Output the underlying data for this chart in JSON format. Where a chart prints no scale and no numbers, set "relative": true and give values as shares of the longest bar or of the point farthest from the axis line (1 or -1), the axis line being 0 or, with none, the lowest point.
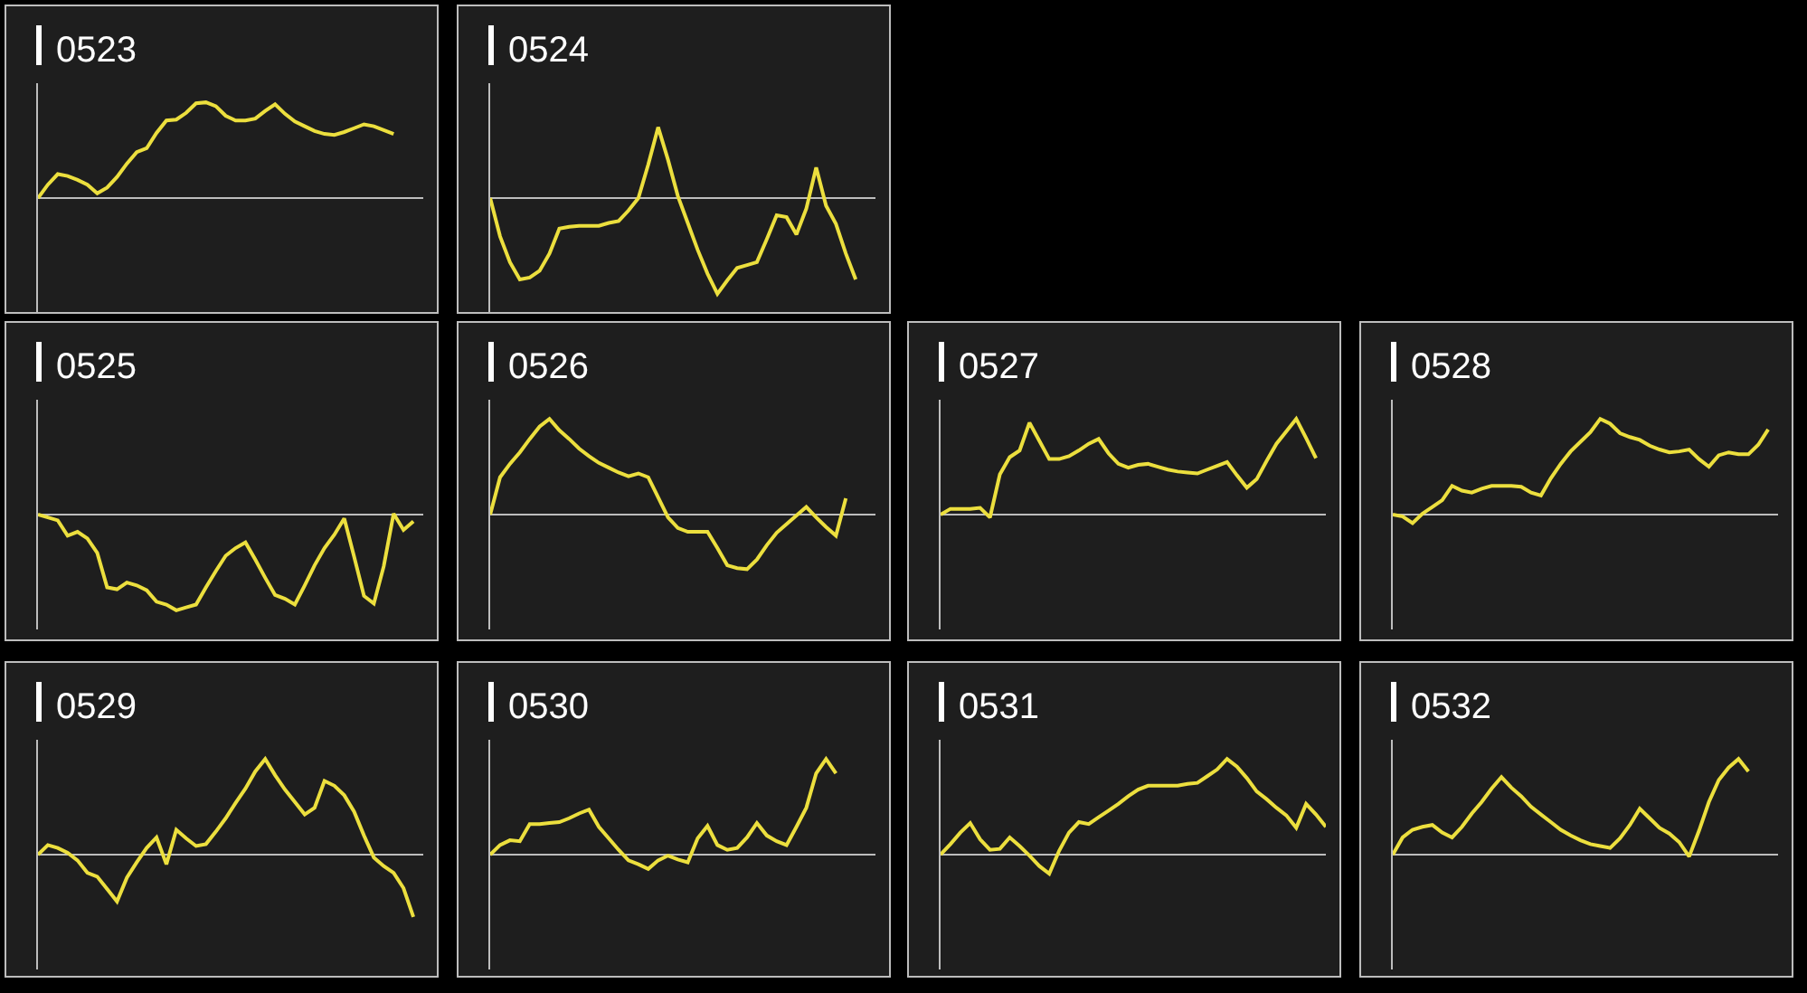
{
  "chart_data": [
    {
      "type": "line",
      "title": "0523",
      "relative": true,
      "color": "#ecdf3e",
      "categories": [
        null,
        null,
        null,
        null,
        null,
        null,
        null,
        null,
        null,
        null,
        null,
        null,
        null,
        null,
        null,
        null,
        null,
        null,
        null,
        null,
        null,
        null,
        null,
        null,
        null,
        null,
        null,
        null,
        null,
        null,
        null,
        null,
        null,
        null,
        null,
        null,
        null,
        null,
        null,
        null
      ],
      "values": [
        0,
        0.14,
        0.25,
        0.23,
        0.19,
        0.14,
        0.05,
        0.11,
        0.22,
        0.36,
        0.48,
        0.52,
        0.68,
        0.81,
        0.82,
        0.89,
        0.99,
        1,
        0.96,
        0.86,
        0.81,
        0.81,
        0.83,
        0.91,
        0.98,
        0.88,
        0.8,
        0.75,
        0.7,
        0.67,
        0.66,
        0.69,
        0.73,
        0.77,
        0.75,
        0.71,
        0.67,
        null,
        null,
        null
      ]
    },
    {
      "type": "line",
      "title": "0524",
      "relative": true,
      "color": "#ecdf3e",
      "categories": [
        null,
        null,
        null,
        null,
        null,
        null,
        null,
        null,
        null,
        null,
        null,
        null,
        null,
        null,
        null,
        null,
        null,
        null,
        null,
        null,
        null,
        null,
        null,
        null,
        null,
        null,
        null,
        null,
        null,
        null,
        null,
        null,
        null,
        null,
        null,
        null,
        null,
        null,
        null,
        null
      ],
      "values": [
        0,
        -0.4,
        -0.67,
        -0.85,
        -0.83,
        -0.76,
        -0.58,
        -0.32,
        -0.3,
        -0.29,
        -0.29,
        -0.29,
        -0.26,
        -0.24,
        -0.13,
        0,
        0.35,
        0.74,
        0.4,
        0.02,
        -0.26,
        -0.54,
        -0.79,
        -1,
        -0.86,
        -0.73,
        -0.7,
        -0.67,
        -0.43,
        -0.18,
        -0.2,
        -0.38,
        -0.11,
        0.32,
        -0.08,
        -0.27,
        -0.58,
        -0.85,
        null,
        null
      ]
    },
    {
      "type": "line",
      "title": "0525",
      "relative": true,
      "color": "#ecdf3e",
      "categories": [
        null,
        null,
        null,
        null,
        null,
        null,
        null,
        null,
        null,
        null,
        null,
        null,
        null,
        null,
        null,
        null,
        null,
        null,
        null,
        null,
        null,
        null,
        null,
        null,
        null,
        null,
        null,
        null,
        null,
        null,
        null,
        null,
        null,
        null,
        null,
        null,
        null,
        null,
        null,
        null
      ],
      "values": [
        0,
        -0.03,
        -0.06,
        -0.22,
        -0.18,
        -0.25,
        -0.4,
        -0.76,
        -0.78,
        -0.71,
        -0.74,
        -0.79,
        -0.91,
        -0.94,
        -1,
        -0.97,
        -0.94,
        -0.76,
        -0.59,
        -0.43,
        -0.35,
        -0.29,
        -0.47,
        -0.66,
        -0.84,
        -0.88,
        -0.94,
        -0.74,
        -0.53,
        -0.35,
        -0.21,
        -0.04,
        -0.44,
        -0.85,
        -0.93,
        -0.54,
        0.01,
        -0.16,
        -0.07,
        null
      ]
    },
    {
      "type": "line",
      "title": "0526",
      "relative": true,
      "color": "#ecdf3e",
      "categories": [
        null,
        null,
        null,
        null,
        null,
        null,
        null,
        null,
        null,
        null,
        null,
        null,
        null,
        null,
        null,
        null,
        null,
        null,
        null,
        null,
        null,
        null,
        null,
        null,
        null,
        null,
        null,
        null,
        null,
        null,
        null,
        null,
        null,
        null,
        null,
        null,
        null,
        null,
        null,
        null
      ],
      "values": [
        0,
        0.39,
        0.53,
        0.65,
        0.79,
        0.92,
        1,
        0.88,
        0.79,
        0.69,
        0.61,
        0.54,
        0.49,
        0.44,
        0.4,
        0.43,
        0.39,
        0.18,
        -0.03,
        -0.14,
        -0.18,
        -0.18,
        -0.18,
        -0.35,
        -0.53,
        -0.56,
        -0.57,
        -0.47,
        -0.32,
        -0.19,
        -0.1,
        -0.01,
        0.08,
        -0.03,
        -0.13,
        -0.22,
        0.17,
        null,
        null,
        null
      ]
    },
    {
      "type": "line",
      "title": "0527",
      "relative": true,
      "color": "#ecdf3e",
      "categories": [
        null,
        null,
        null,
        null,
        null,
        null,
        null,
        null,
        null,
        null,
        null,
        null,
        null,
        null,
        null,
        null,
        null,
        null,
        null,
        null,
        null,
        null,
        null,
        null,
        null,
        null,
        null,
        null,
        null,
        null,
        null,
        null,
        null,
        null,
        null,
        null,
        null,
        null,
        null,
        null
      ],
      "values": [
        0,
        0.06,
        0.06,
        0.06,
        0.07,
        -0.03,
        0.42,
        0.6,
        0.67,
        0.96,
        0.77,
        0.58,
        0.58,
        0.61,
        0.67,
        0.74,
        0.79,
        0.64,
        0.53,
        0.49,
        0.52,
        0.53,
        0.5,
        0.47,
        0.45,
        0.44,
        0.43,
        0.47,
        0.51,
        0.55,
        0.41,
        0.28,
        0.37,
        0.56,
        0.74,
        0.87,
        1,
        0.8,
        0.59,
        null
      ]
    },
    {
      "type": "line",
      "title": "0528",
      "relative": true,
      "color": "#ecdf3e",
      "categories": [
        null,
        null,
        null,
        null,
        null,
        null,
        null,
        null,
        null,
        null,
        null,
        null,
        null,
        null,
        null,
        null,
        null,
        null,
        null,
        null,
        null,
        null,
        null,
        null,
        null,
        null,
        null,
        null,
        null,
        null,
        null,
        null,
        null,
        null,
        null,
        null,
        null,
        null,
        null,
        null
      ],
      "values": [
        0,
        -0.02,
        -0.09,
        0.01,
        0.08,
        0.15,
        0.3,
        0.25,
        0.23,
        0.27,
        0.3,
        0.3,
        0.3,
        0.29,
        0.23,
        0.2,
        0.38,
        0.53,
        0.66,
        0.76,
        0.86,
        1,
        0.95,
        0.85,
        0.81,
        0.78,
        0.72,
        0.68,
        0.65,
        0.66,
        0.68,
        0.58,
        0.5,
        0.62,
        0.65,
        0.63,
        0.63,
        0.73,
        0.89,
        null
      ]
    },
    {
      "type": "line",
      "title": "0529",
      "relative": true,
      "color": "#ecdf3e",
      "categories": [
        null,
        null,
        null,
        null,
        null,
        null,
        null,
        null,
        null,
        null,
        null,
        null,
        null,
        null,
        null,
        null,
        null,
        null,
        null,
        null,
        null,
        null,
        null,
        null,
        null,
        null,
        null,
        null,
        null,
        null,
        null,
        null,
        null,
        null,
        null,
        null,
        null,
        null,
        null,
        null
      ],
      "values": [
        0,
        0.1,
        0.07,
        0.02,
        -0.06,
        -0.19,
        -0.23,
        -0.36,
        -0.49,
        -0.24,
        -0.08,
        0.07,
        0.18,
        -0.1,
        0.26,
        0.17,
        0.09,
        0.11,
        0.24,
        0.38,
        0.54,
        0.69,
        0.87,
        1,
        0.83,
        0.68,
        0.55,
        0.42,
        0.49,
        0.77,
        0.72,
        0.62,
        0.45,
        0.2,
        -0.03,
        -0.12,
        -0.19,
        -0.35,
        -0.65,
        null
      ]
    },
    {
      "type": "line",
      "title": "0530",
      "relative": true,
      "color": "#ecdf3e",
      "categories": [
        null,
        null,
        null,
        null,
        null,
        null,
        null,
        null,
        null,
        null,
        null,
        null,
        null,
        null,
        null,
        null,
        null,
        null,
        null,
        null,
        null,
        null,
        null,
        null,
        null,
        null,
        null,
        null,
        null,
        null,
        null,
        null,
        null,
        null,
        null,
        null,
        null,
        null,
        null,
        null
      ],
      "values": [
        0,
        0.1,
        0.15,
        0.14,
        0.32,
        0.32,
        0.33,
        0.34,
        0.38,
        0.43,
        0.47,
        0.29,
        0.17,
        0.05,
        -0.06,
        -0.1,
        -0.15,
        -0.06,
        -0.01,
        -0.05,
        -0.08,
        0.17,
        0.3,
        0.1,
        0.05,
        0.07,
        0.18,
        0.33,
        0.2,
        0.14,
        0.1,
        0.29,
        0.49,
        0.85,
        1,
        0.85,
        null,
        null,
        null,
        null
      ]
    },
    {
      "type": "line",
      "title": "0531",
      "relative": true,
      "color": "#ecdf3e",
      "categories": [
        null,
        null,
        null,
        null,
        null,
        null,
        null,
        null,
        null,
        null,
        null,
        null,
        null,
        null,
        null,
        null,
        null,
        null,
        null,
        null,
        null,
        null,
        null,
        null,
        null,
        null,
        null,
        null,
        null,
        null,
        null,
        null,
        null,
        null,
        null,
        null,
        null,
        null,
        null,
        null
      ],
      "values": [
        0,
        0.11,
        0.23,
        0.33,
        0.16,
        0.05,
        0.06,
        0.18,
        0.09,
        -0.01,
        -0.12,
        -0.2,
        0.04,
        0.23,
        0.34,
        0.32,
        0.39,
        0.46,
        0.53,
        0.61,
        0.68,
        0.72,
        0.72,
        0.72,
        0.72,
        0.74,
        0.75,
        0.82,
        0.89,
        1,
        0.92,
        0.8,
        0.66,
        0.58,
        0.49,
        0.41,
        0.28,
        0.53,
        0.42,
        0.29
      ]
    },
    {
      "type": "line",
      "title": "0532",
      "relative": true,
      "color": "#ecdf3e",
      "categories": [
        null,
        null,
        null,
        null,
        null,
        null,
        null,
        null,
        null,
        null,
        null,
        null,
        null,
        null,
        null,
        null,
        null,
        null,
        null,
        null,
        null,
        null,
        null,
        null,
        null,
        null,
        null,
        null,
        null,
        null,
        null,
        null,
        null,
        null,
        null,
        null,
        null,
        null,
        null,
        null
      ],
      "values": [
        0,
        0.18,
        0.26,
        0.29,
        0.31,
        0.23,
        0.18,
        0.29,
        0.43,
        0.55,
        0.69,
        0.81,
        0.7,
        0.61,
        0.5,
        0.42,
        0.34,
        0.26,
        0.2,
        0.15,
        0.11,
        0.09,
        0.07,
        0.17,
        0.31,
        0.48,
        0.38,
        0.28,
        0.22,
        0.13,
        -0.02,
        0.25,
        0.55,
        0.78,
        0.91,
        1,
        0.87,
        null,
        null,
        null
      ]
    }
  ]
}
